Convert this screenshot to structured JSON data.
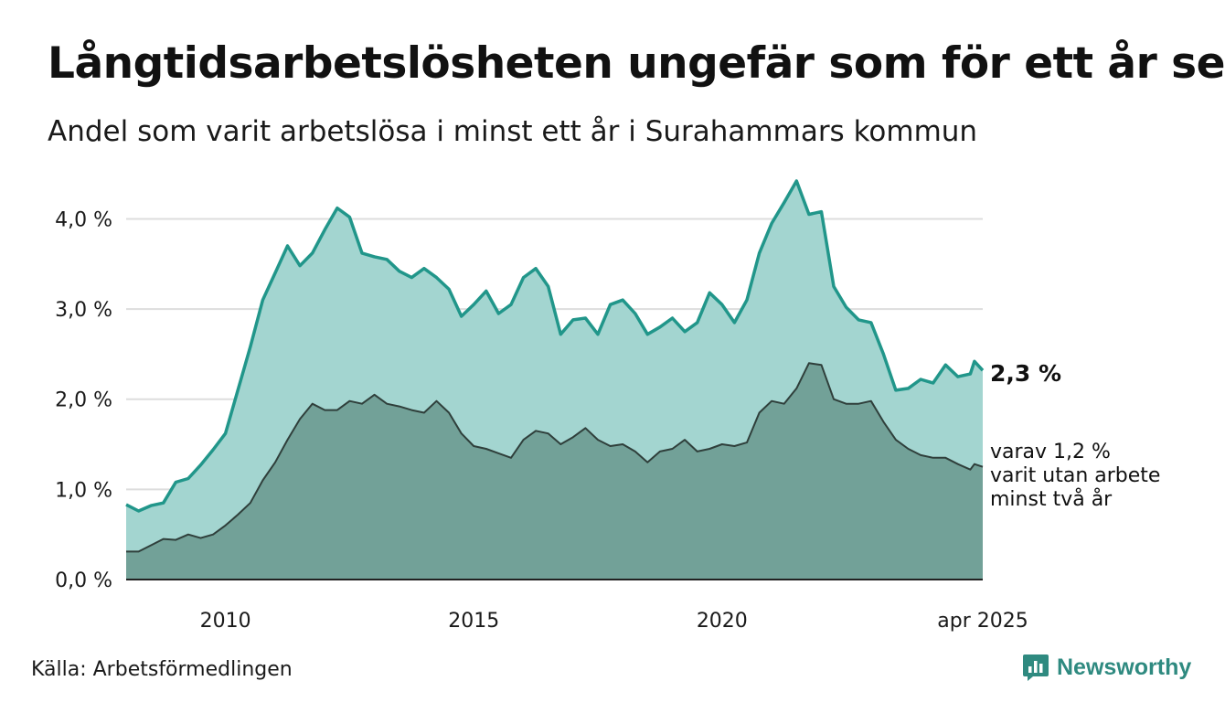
{
  "header": {
    "title": "Långtidsarbetslösheten ungefär som för ett år sen",
    "subtitle": "Andel som varit arbetslösa i minst ett år i Surahammars kommun"
  },
  "footer": {
    "source": "Källa: Arbetsförmedlingen",
    "brand": "Newsworthy"
  },
  "annotations": {
    "latest_value": "2,3 %",
    "sub_label_lines": [
      "varav 1,2 %",
      "varit utan arbete",
      "minst två år"
    ]
  },
  "colors": {
    "upper_fill": "#a3d5d0",
    "upper_line": "#21968a",
    "lower_fill": "#72a198",
    "lower_line": "#2f3f3b",
    "grid": "#dddddd",
    "brand": "#2f8a80"
  },
  "chart_data": {
    "type": "area",
    "title": "Långtidsarbetslösheten ungefär som för ett år sen",
    "subtitle": "Andel som varit arbetslösa i minst ett år i Surahammars kommun",
    "x_range": [
      "2008-01",
      "2025-04"
    ],
    "ylim": [
      0,
      4.4
    ],
    "y_ticks": [
      0,
      1,
      2,
      3,
      4
    ],
    "y_tick_labels": [
      "0,0 %",
      "1,0 %",
      "2,0 %",
      "3,0 %",
      "4,0 %"
    ],
    "x_ticks": [
      "2010-01",
      "2015-01",
      "2020-01",
      "2025-04"
    ],
    "x_tick_labels": [
      "2010",
      "2015",
      "2020",
      "apr 2025"
    ],
    "grid": true,
    "series": [
      {
        "name": "",
        "points": [
          [
            "2008-01",
            0.83
          ],
          [
            "2008-04",
            0.76
          ],
          [
            "2008-07",
            0.82
          ],
          [
            "2008-10",
            0.85
          ],
          [
            "2009-01",
            1.08
          ],
          [
            "2009-04",
            1.12
          ],
          [
            "2009-07",
            1.27
          ],
          [
            "2009-10",
            1.44
          ],
          [
            "2010-01",
            1.62
          ],
          [
            "2010-04",
            2.1
          ],
          [
            "2010-07",
            2.58
          ],
          [
            "2010-10",
            3.1
          ],
          [
            "2011-01",
            3.4
          ],
          [
            "2011-04",
            3.7
          ],
          [
            "2011-07",
            3.48
          ],
          [
            "2011-10",
            3.62
          ],
          [
            "2012-01",
            3.88
          ],
          [
            "2012-04",
            4.12
          ],
          [
            "2012-07",
            4.02
          ],
          [
            "2012-10",
            3.62
          ],
          [
            "2013-01",
            3.58
          ],
          [
            "2013-04",
            3.55
          ],
          [
            "2013-07",
            3.42
          ],
          [
            "2013-10",
            3.35
          ],
          [
            "2014-01",
            3.45
          ],
          [
            "2014-04",
            3.35
          ],
          [
            "2014-07",
            3.22
          ],
          [
            "2014-10",
            2.92
          ],
          [
            "2015-01",
            3.05
          ],
          [
            "2015-04",
            3.2
          ],
          [
            "2015-07",
            2.95
          ],
          [
            "2015-10",
            3.05
          ],
          [
            "2016-01",
            3.35
          ],
          [
            "2016-04",
            3.45
          ],
          [
            "2016-07",
            3.25
          ],
          [
            "2016-10",
            2.72
          ],
          [
            "2017-01",
            2.88
          ],
          [
            "2017-04",
            2.9
          ],
          [
            "2017-07",
            2.72
          ],
          [
            "2017-10",
            3.05
          ],
          [
            "2018-01",
            3.1
          ],
          [
            "2018-04",
            2.95
          ],
          [
            "2018-07",
            2.72
          ],
          [
            "2018-10",
            2.8
          ],
          [
            "2019-01",
            2.9
          ],
          [
            "2019-04",
            2.75
          ],
          [
            "2019-07",
            2.85
          ],
          [
            "2019-10",
            3.18
          ],
          [
            "2020-01",
            3.05
          ],
          [
            "2020-04",
            2.85
          ],
          [
            "2020-07",
            3.1
          ],
          [
            "2020-10",
            3.62
          ],
          [
            "2021-01",
            3.95
          ],
          [
            "2021-04",
            4.18
          ],
          [
            "2021-07",
            4.42
          ],
          [
            "2021-10",
            4.05
          ],
          [
            "2022-01",
            4.08
          ],
          [
            "2022-04",
            3.25
          ],
          [
            "2022-07",
            3.02
          ],
          [
            "2022-10",
            2.88
          ],
          [
            "2023-01",
            2.85
          ],
          [
            "2023-04",
            2.5
          ],
          [
            "2023-07",
            2.1
          ],
          [
            "2023-10",
            2.12
          ],
          [
            "2024-01",
            2.22
          ],
          [
            "2024-04",
            2.18
          ],
          [
            "2024-07",
            2.38
          ],
          [
            "2024-10",
            2.25
          ],
          [
            "2025-01",
            2.28
          ],
          [
            "2025-02",
            2.42
          ],
          [
            "2025-04",
            2.32
          ]
        ]
      },
      {
        "name": "",
        "points": [
          [
            "2008-01",
            0.31
          ],
          [
            "2008-04",
            0.31
          ],
          [
            "2008-07",
            0.38
          ],
          [
            "2008-10",
            0.45
          ],
          [
            "2009-01",
            0.44
          ],
          [
            "2009-04",
            0.5
          ],
          [
            "2009-07",
            0.46
          ],
          [
            "2009-10",
            0.5
          ],
          [
            "2010-01",
            0.6
          ],
          [
            "2010-04",
            0.72
          ],
          [
            "2010-07",
            0.85
          ],
          [
            "2010-10",
            1.1
          ],
          [
            "2011-01",
            1.3
          ],
          [
            "2011-04",
            1.55
          ],
          [
            "2011-07",
            1.78
          ],
          [
            "2011-10",
            1.95
          ],
          [
            "2012-01",
            1.88
          ],
          [
            "2012-04",
            1.88
          ],
          [
            "2012-07",
            1.98
          ],
          [
            "2012-10",
            1.95
          ],
          [
            "2013-01",
            2.05
          ],
          [
            "2013-04",
            1.95
          ],
          [
            "2013-07",
            1.92
          ],
          [
            "2013-10",
            1.88
          ],
          [
            "2014-01",
            1.85
          ],
          [
            "2014-04",
            1.98
          ],
          [
            "2014-07",
            1.85
          ],
          [
            "2014-10",
            1.62
          ],
          [
            "2015-01",
            1.48
          ],
          [
            "2015-04",
            1.45
          ],
          [
            "2015-07",
            1.4
          ],
          [
            "2015-10",
            1.35
          ],
          [
            "2016-01",
            1.55
          ],
          [
            "2016-04",
            1.65
          ],
          [
            "2016-07",
            1.62
          ],
          [
            "2016-10",
            1.5
          ],
          [
            "2017-01",
            1.58
          ],
          [
            "2017-04",
            1.68
          ],
          [
            "2017-07",
            1.55
          ],
          [
            "2017-10",
            1.48
          ],
          [
            "2018-01",
            1.5
          ],
          [
            "2018-04",
            1.42
          ],
          [
            "2018-07",
            1.3
          ],
          [
            "2018-10",
            1.42
          ],
          [
            "2019-01",
            1.45
          ],
          [
            "2019-04",
            1.55
          ],
          [
            "2019-07",
            1.42
          ],
          [
            "2019-10",
            1.45
          ],
          [
            "2020-01",
            1.5
          ],
          [
            "2020-04",
            1.48
          ],
          [
            "2020-07",
            1.52
          ],
          [
            "2020-10",
            1.85
          ],
          [
            "2021-01",
            1.98
          ],
          [
            "2021-04",
            1.95
          ],
          [
            "2021-07",
            2.12
          ],
          [
            "2021-10",
            2.4
          ],
          [
            "2022-01",
            2.38
          ],
          [
            "2022-04",
            2.0
          ],
          [
            "2022-07",
            1.95
          ],
          [
            "2022-10",
            1.95
          ],
          [
            "2023-01",
            1.98
          ],
          [
            "2023-04",
            1.75
          ],
          [
            "2023-07",
            1.55
          ],
          [
            "2023-10",
            1.45
          ],
          [
            "2024-01",
            1.38
          ],
          [
            "2024-04",
            1.35
          ],
          [
            "2024-07",
            1.35
          ],
          [
            "2024-10",
            1.28
          ],
          [
            "2025-01",
            1.22
          ],
          [
            "2025-02",
            1.28
          ],
          [
            "2025-04",
            1.25
          ]
        ]
      }
    ]
  }
}
